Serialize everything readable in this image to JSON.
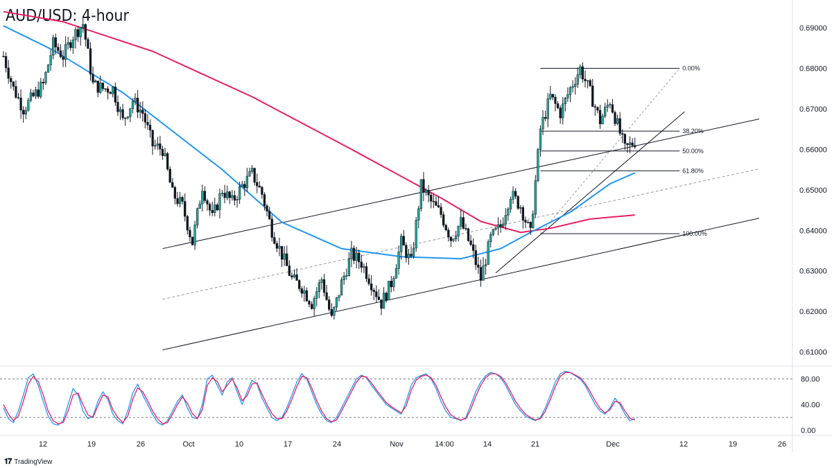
{
  "title": "AUD/USD: 4-hour",
  "branding": {
    "logo_icon": "tradingview-logo-icon",
    "text": "TradingView"
  },
  "colors": {
    "up_candle": "#26a69a",
    "down_candle": "#131722",
    "ma_fast": "#2196f3",
    "ma_slow": "#e91e63",
    "stoch_k": "#2196f3",
    "stoch_d": "#e91e63",
    "trendline": "#131722",
    "fib_line": "#131722",
    "gridline": "#e0e3eb"
  },
  "chart_data": [
    {
      "type": "candlestick",
      "panel": "price",
      "title": "AUD/USD: 4-hour",
      "price_axis": {
        "ticks": [
          "0.69000",
          "0.68000",
          "0.67000",
          "0.66000",
          "0.65000",
          "0.64000",
          "0.63000",
          "0.62000",
          "0.61000"
        ],
        "ylim": [
          0.6065,
          0.6955
        ]
      },
      "time_axis": {
        "labels": [
          "12",
          "19",
          "26",
          "Oct",
          "10",
          "17",
          "24",
          "Nov",
          "14:00",
          "14",
          "21",
          "Dec",
          "12",
          "19",
          "26"
        ]
      },
      "close_path": [
        [
          0,
          0.683
        ],
        [
          2,
          0.675
        ],
        [
          4,
          0.67
        ],
        [
          6,
          0.673
        ],
        [
          8,
          0.676
        ],
        [
          10,
          0.686
        ],
        [
          12,
          0.683
        ],
        [
          14,
          0.688
        ],
        [
          16,
          0.691
        ],
        [
          18,
          0.676
        ],
        [
          20,
          0.675
        ],
        [
          22,
          0.675
        ],
        [
          24,
          0.667
        ],
        [
          26,
          0.672
        ],
        [
          28,
          0.669
        ],
        [
          30,
          0.661
        ],
        [
          32,
          0.66
        ],
        [
          34,
          0.649
        ],
        [
          36,
          0.646
        ],
        [
          38,
          0.637
        ],
        [
          40,
          0.651
        ],
        [
          42,
          0.643
        ],
        [
          44,
          0.65
        ],
        [
          46,
          0.647
        ],
        [
          48,
          0.651
        ],
        [
          50,
          0.654
        ],
        [
          52,
          0.649
        ],
        [
          54,
          0.64
        ],
        [
          56,
          0.634
        ],
        [
          58,
          0.628
        ],
        [
          60,
          0.626
        ],
        [
          62,
          0.622
        ],
        [
          64,
          0.628
        ],
        [
          66,
          0.618
        ],
        [
          68,
          0.627
        ],
        [
          70,
          0.634
        ],
        [
          72,
          0.632
        ],
        [
          74,
          0.627
        ],
        [
          76,
          0.622
        ],
        [
          78,
          0.627
        ],
        [
          80,
          0.637
        ],
        [
          82,
          0.632
        ],
        [
          84,
          0.651
        ],
        [
          86,
          0.647
        ],
        [
          88,
          0.644
        ],
        [
          90,
          0.638
        ],
        [
          92,
          0.642
        ],
        [
          94,
          0.636
        ],
        [
          96,
          0.628
        ],
        [
          98,
          0.638
        ],
        [
          100,
          0.641
        ],
        [
          102,
          0.649
        ],
        [
          104,
          0.646
        ],
        [
          106,
          0.639
        ],
        [
          108,
          0.665
        ],
        [
          110,
          0.673
        ],
        [
          112,
          0.669
        ],
        [
          114,
          0.675
        ],
        [
          116,
          0.68
        ],
        [
          118,
          0.674
        ],
        [
          120,
          0.667
        ],
        [
          122,
          0.672
        ],
        [
          124,
          0.664
        ],
        [
          125,
          0.66
        ],
        [
          127,
          0.662
        ]
      ],
      "moving_averages": [
        {
          "color": "#e91e63",
          "points": [
            [
              0,
              0.694
            ],
            [
              12,
              0.6915
            ],
            [
              30,
              0.6842
            ],
            [
              50,
              0.673
            ],
            [
              70,
              0.66
            ],
            [
              88,
              0.648
            ],
            [
              96,
              0.6422
            ],
            [
              104,
              0.6395
            ],
            [
              110,
              0.6405
            ],
            [
              118,
              0.6428
            ],
            [
              127,
              0.6438
            ]
          ]
        },
        {
          "color": "#2196f3",
          "points": [
            [
              0,
              0.6905
            ],
            [
              10,
              0.6845
            ],
            [
              24,
              0.674
            ],
            [
              44,
              0.655
            ],
            [
              56,
              0.642
            ],
            [
              68,
              0.6355
            ],
            [
              80,
              0.6335
            ],
            [
              92,
              0.633
            ],
            [
              100,
              0.6355
            ],
            [
              106,
              0.6395
            ],
            [
              114,
              0.6445
            ],
            [
              122,
              0.6515
            ],
            [
              127,
              0.6542
            ]
          ]
        }
      ],
      "channel": {
        "upper": {
          "from": [
            32,
            0.6355
          ],
          "to": [
            152,
            0.6675
          ]
        },
        "lower": {
          "from": [
            32,
            0.6105
          ],
          "to": [
            152,
            0.643
          ]
        },
        "mid": {
          "from": [
            32,
            0.623
          ],
          "to": [
            152,
            0.6552
          ]
        }
      },
      "support_trendline": {
        "from": [
          99,
          0.6295
        ],
        "to": [
          137,
          0.6693
        ]
      },
      "fibonacci": {
        "swing_low": [
          108,
          0.6392
        ],
        "swing_high_x": 136,
        "levels": [
          {
            "label": "0.00%",
            "price": 0.68
          },
          {
            "label": "38.20%",
            "price": 0.6645
          },
          {
            "label": "50.00%",
            "price": 0.6596
          },
          {
            "label": "61.80%",
            "price": 0.6547
          },
          {
            "label": "100.00%",
            "price": 0.6392
          }
        ]
      }
    },
    {
      "type": "line",
      "panel": "stochastic",
      "y_axis": {
        "ticks": [
          "80.00",
          "40.00",
          "0.00"
        ],
        "ylim": [
          -8,
          100
        ]
      },
      "levels": [
        80,
        20
      ],
      "series": [
        {
          "color": "#2196f3",
          "values": [
            35,
            18,
            12,
            30,
            55,
            82,
            88,
            70,
            45,
            22,
            10,
            8,
            15,
            40,
            65,
            55,
            30,
            18,
            22,
            45,
            60,
            48,
            25,
            15,
            10,
            30,
            58,
            72,
            55,
            40,
            25,
            12,
            8,
            15,
            30,
            45,
            55,
            35,
            20,
            18,
            40,
            80,
            86,
            70,
            55,
            75,
            82,
            60,
            40,
            60,
            78,
            72,
            50,
            35,
            20,
            15,
            20,
            35,
            55,
            75,
            88,
            80,
            60,
            40,
            25,
            15,
            12,
            20,
            35,
            50,
            65,
            80,
            86,
            82,
            70,
            60,
            50,
            40,
            35,
            30,
            25,
            45,
            70,
            82,
            85,
            88,
            80,
            65,
            45,
            30,
            20,
            18,
            15,
            20,
            40,
            60,
            75,
            85,
            90,
            88,
            82,
            70,
            55,
            40,
            30,
            22,
            18,
            15,
            20,
            35,
            55,
            75,
            88,
            92,
            90,
            85,
            80,
            70,
            55,
            40,
            30,
            25,
            35,
            50,
            40,
            25,
            15,
            18
          ]
        },
        {
          "color": "#e91e63",
          "values": [
            40,
            25,
            15,
            22,
            45,
            72,
            84,
            76,
            55,
            30,
            15,
            10,
            12,
            30,
            55,
            58,
            40,
            24,
            20,
            38,
            55,
            52,
            32,
            20,
            12,
            22,
            48,
            66,
            60,
            46,
            30,
            18,
            10,
            12,
            25,
            40,
            52,
            42,
            26,
            18,
            32,
            70,
            82,
            76,
            60,
            70,
            80,
            66,
            46,
            54,
            72,
            74,
            56,
            40,
            26,
            18,
            18,
            30,
            48,
            68,
            84,
            82,
            66,
            46,
            30,
            18,
            13,
            16,
            30,
            45,
            60,
            75,
            84,
            83,
            74,
            63,
            53,
            43,
            37,
            32,
            27,
            38,
            62,
            78,
            84,
            86,
            82,
            70,
            52,
            36,
            24,
            19,
            16,
            18,
            33,
            53,
            70,
            82,
            88,
            88,
            84,
            74,
            60,
            45,
            34,
            25,
            20,
            16,
            18,
            30,
            48,
            68,
            84,
            90,
            90,
            86,
            82,
            73,
            60,
            46,
            34,
            27,
            32,
            45,
            43,
            30,
            19,
            16
          ]
        }
      ]
    }
  ]
}
